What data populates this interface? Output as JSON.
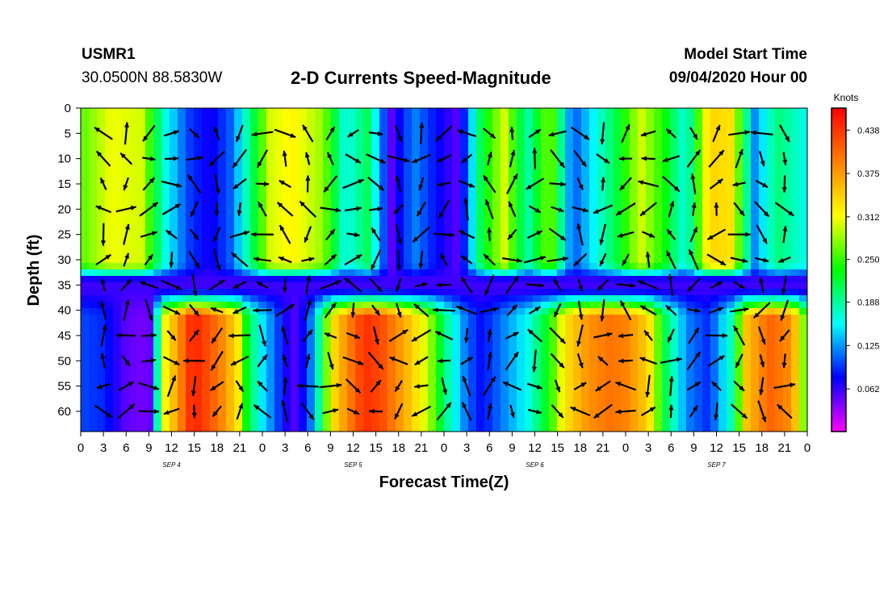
{
  "header": {
    "station": "USMR1",
    "coords": "30.0500N 88.5830W",
    "title": "2-D Currents Speed-Magnitude",
    "start_label": "Model Start Time",
    "start_value": "09/04/2020 Hour 00"
  },
  "chart_data": {
    "type": "heatmap",
    "title": "2-D Currents Speed-Magnitude",
    "xlabel": "Forecast Time(Z)",
    "ylabel": "Depth (ft)",
    "x_ticks": [
      "0",
      "3",
      "6",
      "9",
      "12",
      "15",
      "18",
      "21",
      "0",
      "3",
      "6",
      "9",
      "12",
      "15",
      "18",
      "21",
      "0",
      "3",
      "6",
      "9",
      "12",
      "15",
      "18",
      "21",
      "0",
      "3",
      "6",
      "9",
      "12",
      "15",
      "18",
      "21",
      "0"
    ],
    "day_labels": [
      "SEP 4",
      "SEP 5",
      "SEP 6",
      "SEP 7"
    ],
    "y_ticks": [
      "0",
      "5",
      "10",
      "15",
      "20",
      "25",
      "30",
      "35",
      "40",
      "45",
      "50",
      "55",
      "60"
    ],
    "ylim": [
      0,
      64
    ],
    "xlim_hours": [
      0,
      96
    ],
    "colorbar": {
      "unit": "Knots",
      "ticks": [
        "0.438",
        "0.375",
        "0.312",
        "0.250",
        "0.188",
        "0.125",
        "0.062"
      ],
      "range": [
        0.0,
        0.47
      ],
      "colors": [
        "#ff00ff",
        "#8000ff",
        "#0000ff",
        "#0080ff",
        "#00ffff",
        "#00ff80",
        "#00ff00",
        "#80ff00",
        "#ffff00",
        "#ffc000",
        "#ff8000",
        "#ff4000",
        "#ff0000"
      ]
    },
    "upper_layer": {
      "depth_range": [
        0,
        33
      ],
      "hours": [
        0,
        4,
        8,
        11,
        14,
        17,
        20,
        23,
        25,
        28,
        32,
        35,
        38,
        41,
        44,
        47,
        50,
        53,
        56,
        59,
        62,
        65,
        68,
        71,
        74,
        77,
        80,
        83,
        86,
        89,
        92,
        96
      ],
      "speed": [
        0.26,
        0.31,
        0.3,
        0.17,
        0.1,
        0.07,
        0.11,
        0.22,
        0.3,
        0.32,
        0.28,
        0.16,
        0.21,
        0.05,
        0.12,
        0.08,
        0.05,
        0.22,
        0.3,
        0.18,
        0.28,
        0.1,
        0.16,
        0.22,
        0.3,
        0.24,
        0.16,
        0.34,
        0.33,
        0.12,
        0.2,
        0.16
      ]
    },
    "lower_layer": {
      "depth_range": [
        38,
        64
      ],
      "hours": [
        0,
        3,
        6,
        9,
        10,
        11,
        13,
        14,
        15,
        17,
        19,
        21,
        22,
        24,
        26,
        28,
        30,
        32,
        33,
        35,
        37,
        38,
        40,
        43,
        46,
        48,
        51,
        53,
        56,
        59,
        62,
        64,
        67,
        70,
        72,
        75,
        77,
        80,
        83,
        86,
        88,
        91,
        94,
        96
      ],
      "speed": [
        0.1,
        0.09,
        0.05,
        0.04,
        0.16,
        0.31,
        0.38,
        0.43,
        0.45,
        0.42,
        0.38,
        0.32,
        0.22,
        0.15,
        0.1,
        0.05,
        0.09,
        0.22,
        0.32,
        0.38,
        0.43,
        0.44,
        0.42,
        0.36,
        0.29,
        0.2,
        0.11,
        0.08,
        0.12,
        0.16,
        0.24,
        0.33,
        0.38,
        0.4,
        0.39,
        0.34,
        0.22,
        0.12,
        0.09,
        0.18,
        0.35,
        0.41,
        0.38,
        0.24
      ]
    },
    "mid_band": {
      "depth_range": [
        31,
        38
      ],
      "speed": 0.06
    },
    "vectors": {
      "hour_step": 3,
      "depths": [
        5,
        10,
        15,
        20,
        25,
        30,
        35,
        40,
        45,
        50,
        55,
        60
      ]
    }
  }
}
